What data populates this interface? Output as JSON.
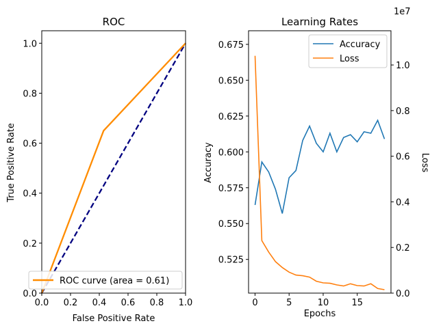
{
  "figure": {
    "background": "#ffffff"
  },
  "chart_data": [
    {
      "type": "line",
      "title": "ROC",
      "xlabel": "False Positive Rate",
      "ylabel": "True Positive Rate",
      "xlim": [
        0.0,
        1.0
      ],
      "ylim": [
        0.0,
        1.05
      ],
      "xticks": [
        "0.0",
        "0.2",
        "0.4",
        "0.6",
        "0.8",
        "1.0"
      ],
      "yticks": [
        "0.0",
        "0.2",
        "0.4",
        "0.6",
        "0.8",
        "1.0"
      ],
      "grid": false,
      "legend_position": "lower right",
      "series": [
        {
          "name": "ROC curve (area = 0.61)",
          "color": "#ff8c00",
          "style": "solid",
          "x": [
            0.0,
            0.43,
            1.0
          ],
          "y": [
            0.0,
            0.65,
            1.0
          ]
        },
        {
          "color": "#000080",
          "style": "dashed",
          "x": [
            0.0,
            1.0
          ],
          "y": [
            0.0,
            1.0
          ]
        }
      ]
    },
    {
      "type": "line",
      "title": "Learning Rates",
      "xlabel": "Epochs",
      "ylabel": "Accuracy",
      "ylabel_right": "Loss",
      "right_axis_multiplier": "1e7",
      "xlim": [
        -0.95,
        19.95
      ],
      "ylim": [
        0.5015,
        0.6845
      ],
      "ylim_right": [
        0,
        11500000
      ],
      "xticks": [
        "0",
        "5",
        "10",
        "15"
      ],
      "yticks": [
        "0.525",
        "0.550",
        "0.575",
        "0.600",
        "0.625",
        "0.650",
        "0.675"
      ],
      "yticks_right": [
        "0.0",
        "0.2",
        "0.4",
        "0.6",
        "0.8",
        "1.0"
      ],
      "grid": false,
      "legend_position": "upper right",
      "x": [
        0,
        1,
        2,
        3,
        4,
        5,
        6,
        7,
        8,
        9,
        10,
        11,
        12,
        13,
        14,
        15,
        16,
        17,
        18,
        19
      ],
      "series": [
        {
          "name": "Accuracy",
          "axis": "left",
          "color": "#1f77b4",
          "values": [
            0.563,
            0.593,
            0.586,
            0.574,
            0.557,
            0.582,
            0.587,
            0.608,
            0.618,
            0.606,
            0.6,
            0.613,
            0.6,
            0.61,
            0.612,
            0.607,
            0.614,
            0.613,
            0.622,
            0.609
          ]
        },
        {
          "name": "Loss",
          "axis": "right",
          "color": "#ff7f0e",
          "values": [
            10400000,
            2300000,
            1800000,
            1380000,
            1120000,
            920000,
            790000,
            760000,
            700000,
            520000,
            450000,
            430000,
            360000,
            310000,
            410000,
            330000,
            310000,
            410000,
            200000,
            150000
          ]
        }
      ]
    }
  ]
}
